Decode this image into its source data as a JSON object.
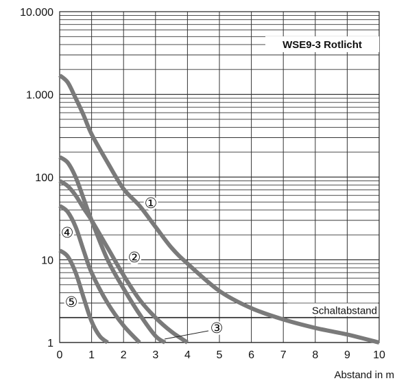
{
  "chart_data": {
    "type": "line",
    "title": "WSE9-3 Rotlicht",
    "xlabel": "Abstand in m",
    "ylabel": "",
    "xlim": [
      0,
      10
    ],
    "ylim": [
      1,
      10000
    ],
    "y_scale": "log",
    "grid": true,
    "x_ticks": [
      0,
      1,
      2,
      3,
      4,
      5,
      6,
      7,
      8,
      9,
      10
    ],
    "x_tick_labels": [
      "0",
      "1",
      "2",
      "3",
      "4",
      "5",
      "6",
      "7",
      "8",
      "9",
      "10"
    ],
    "y_ticks": [
      1,
      10,
      100,
      1000,
      10000
    ],
    "y_tick_labels": [
      "1",
      "10",
      "100",
      "1.000",
      "10.000"
    ],
    "reference_line": {
      "label": "Schaltabstand",
      "y": 2
    },
    "series": [
      {
        "name": "①",
        "x": [
          0,
          0.25,
          0.5,
          0.75,
          1,
          1.5,
          2,
          2.5,
          3,
          3.5,
          4,
          5,
          6,
          7,
          8,
          9,
          10
        ],
        "y": [
          1700,
          1400,
          900,
          560,
          330,
          150,
          72,
          45,
          25,
          14,
          9,
          4.2,
          2.6,
          1.9,
          1.5,
          1.25,
          1
        ]
      },
      {
        "name": "②",
        "x": [
          0,
          0.25,
          0.5,
          0.75,
          1,
          1.5,
          2,
          2.5,
          3,
          3.3
        ],
        "y": [
          175,
          150,
          100,
          55,
          30,
          10,
          4.5,
          2.2,
          1.2,
          1
        ]
      },
      {
        "name": "③",
        "x": [
          0,
          0.25,
          0.5,
          0.75,
          1,
          1.5,
          2,
          2.5,
          3,
          3.5,
          4
        ],
        "y": [
          90,
          78,
          60,
          42,
          30,
          14,
          6.5,
          3.3,
          2,
          1.35,
          1
        ]
      },
      {
        "name": "④",
        "x": [
          0,
          0.25,
          0.5,
          0.75,
          1,
          1.5,
          2,
          2.5
        ],
        "y": [
          45,
          38,
          25,
          13,
          7,
          3,
          1.6,
          1
        ]
      },
      {
        "name": "⑤",
        "x": [
          0,
          0.25,
          0.5,
          0.75,
          1,
          1.25,
          1.5
        ],
        "y": [
          13,
          11,
          7,
          3.5,
          1.8,
          1.2,
          1
        ]
      }
    ],
    "curve_labels": [
      "①",
      "②",
      "③",
      "④",
      "⑤"
    ]
  }
}
